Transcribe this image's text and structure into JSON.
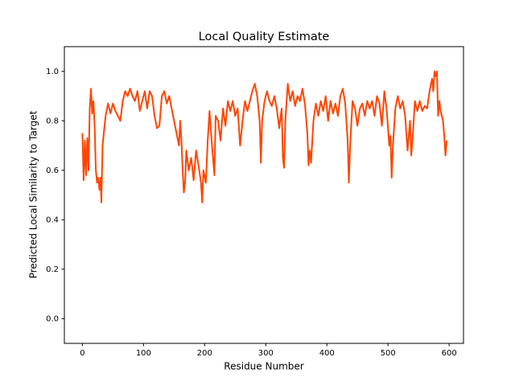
{
  "chart_data": {
    "type": "line",
    "title": "Local Quality Estimate",
    "xlabel": "Residue Number",
    "ylabel": "Predicted Local Similarity to Target",
    "color": "#ff4500",
    "xlim": [
      -29.5,
      623.5
    ],
    "ylim": [
      -0.1,
      1.1
    ],
    "xticks": [
      0,
      100,
      200,
      300,
      400,
      500,
      600
    ],
    "yticks": [
      {
        "value": 0,
        "label": "0.0"
      },
      0.2,
      0.4,
      0.6,
      0.8,
      {
        "value": 1,
        "label": "1.0"
      }
    ],
    "x": [
      0,
      2,
      4,
      6,
      8,
      10,
      12,
      14,
      16,
      18,
      20,
      22,
      24,
      26,
      28,
      30,
      31,
      33,
      35,
      38,
      42,
      46,
      50,
      54,
      58,
      62,
      66,
      70,
      74,
      78,
      82,
      86,
      90,
      94,
      98,
      102,
      106,
      110,
      114,
      118,
      122,
      126,
      130,
      134,
      138,
      142,
      146,
      150,
      154,
      158,
      160,
      162,
      164,
      166,
      168,
      170,
      174,
      178,
      182,
      186,
      190,
      194,
      196,
      198,
      202,
      205,
      208,
      212,
      216,
      218,
      222,
      226,
      230,
      234,
      238,
      242,
      246,
      250,
      254,
      258,
      262,
      266,
      270,
      274,
      278,
      282,
      286,
      290,
      292,
      294,
      298,
      302,
      306,
      310,
      314,
      318,
      322,
      326,
      328,
      330,
      332,
      336,
      340,
      344,
      348,
      352,
      356,
      360,
      364,
      368,
      370,
      372,
      374,
      378,
      382,
      386,
      390,
      394,
      398,
      402,
      406,
      410,
      414,
      418,
      422,
      426,
      430,
      434,
      436,
      438,
      442,
      446,
      450,
      454,
      458,
      462,
      466,
      470,
      474,
      478,
      482,
      486,
      490,
      494,
      498,
      502,
      504,
      506,
      508,
      512,
      516,
      520,
      524,
      528,
      532,
      536,
      538,
      540,
      544,
      548,
      552,
      556,
      560,
      564,
      568,
      572,
      574,
      576,
      578,
      580,
      582,
      584,
      586,
      590,
      592,
      594,
      596
    ],
    "values": [
      0.75,
      0.56,
      0.72,
      0.58,
      0.73,
      0.6,
      0.85,
      0.93,
      0.83,
      0.88,
      0.78,
      0.6,
      0.55,
      0.57,
      0.52,
      0.57,
      0.47,
      0.7,
      0.75,
      0.82,
      0.87,
      0.83,
      0.87,
      0.84,
      0.82,
      0.8,
      0.88,
      0.92,
      0.9,
      0.93,
      0.9,
      0.88,
      0.92,
      0.84,
      0.88,
      0.92,
      0.85,
      0.92,
      0.9,
      0.82,
      0.77,
      0.78,
      0.9,
      0.92,
      0.87,
      0.9,
      0.85,
      0.8,
      0.75,
      0.7,
      0.8,
      0.72,
      0.6,
      0.51,
      0.55,
      0.68,
      0.6,
      0.65,
      0.56,
      0.68,
      0.62,
      0.55,
      0.47,
      0.6,
      0.55,
      0.72,
      0.84,
      0.7,
      0.58,
      0.82,
      0.8,
      0.72,
      0.85,
      0.78,
      0.88,
      0.84,
      0.88,
      0.82,
      0.85,
      0.7,
      0.8,
      0.88,
      0.84,
      0.88,
      0.92,
      0.95,
      0.9,
      0.8,
      0.63,
      0.8,
      0.88,
      0.92,
      0.88,
      0.86,
      0.9,
      0.85,
      0.77,
      0.85,
      0.65,
      0.61,
      0.8,
      0.95,
      0.88,
      0.92,
      0.86,
      0.9,
      0.88,
      0.93,
      0.87,
      0.75,
      0.62,
      0.68,
      0.63,
      0.8,
      0.87,
      0.82,
      0.88,
      0.84,
      0.9,
      0.8,
      0.88,
      0.83,
      0.87,
      0.82,
      0.9,
      0.93,
      0.87,
      0.72,
      0.55,
      0.7,
      0.88,
      0.85,
      0.78,
      0.85,
      0.87,
      0.82,
      0.88,
      0.85,
      0.88,
      0.82,
      0.9,
      0.87,
      0.78,
      0.92,
      0.84,
      0.7,
      0.74,
      0.57,
      0.7,
      0.85,
      0.9,
      0.85,
      0.88,
      0.82,
      0.68,
      0.8,
      0.66,
      0.72,
      0.88,
      0.84,
      0.88,
      0.84,
      0.86,
      0.85,
      0.92,
      0.97,
      0.92,
      1.0,
      0.98,
      1.0,
      0.82,
      0.88,
      0.84,
      0.8,
      0.74,
      0.66,
      0.72
    ]
  }
}
